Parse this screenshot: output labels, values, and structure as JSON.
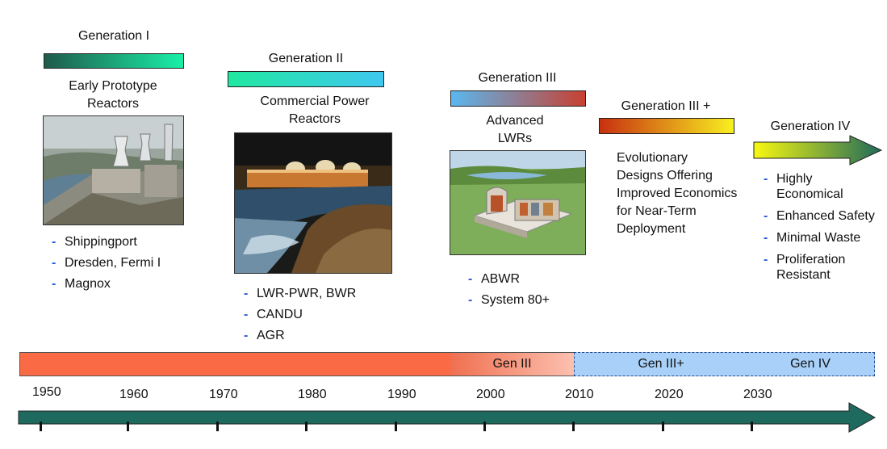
{
  "generations": [
    {
      "title": "Generation I",
      "subtitle": "Early Prototype Reactors",
      "items": [
        "Shippingport",
        "Dresden, Fermi I",
        "Magnox"
      ]
    },
    {
      "title": "Generation II",
      "subtitle": "Commercial Power Reactors",
      "items": [
        "LWR-PWR, BWR",
        "CANDU",
        "AGR"
      ]
    },
    {
      "title": "Generation III",
      "subtitle": "Advanced LWRs",
      "items": [
        "ABWR",
        "System 80+"
      ]
    },
    {
      "title": "Generation III +",
      "description": "Evolutionary Designs Offering Improved Economics for Near-Term Deployment"
    },
    {
      "title": "Generation IV",
      "items": [
        "Highly Economical",
        "Enhanced Safety",
        "Minimal Waste",
        "Proliferation Resistant"
      ]
    }
  ],
  "timeline": {
    "segments": [
      "",
      "Gen III",
      "Gen III+",
      "Gen IV"
    ],
    "years": [
      "1950",
      "1960",
      "1970",
      "1980",
      "1990",
      "2000",
      "2010",
      "2020",
      "2030"
    ]
  },
  "colors": {
    "gen1_bar": [
      "#1f5a4a",
      "#18f0a8"
    ],
    "gen2_bar": [
      "#20e8a0",
      "#40c8f0"
    ],
    "gen3_bar": [
      "#5ab8f0",
      "#c84030"
    ],
    "gen3plus_bar": [
      "#c83010",
      "#f8f020"
    ],
    "gen4_arrow": [
      "#f8f810",
      "#1f6a5a"
    ],
    "timeline_red": "#fa6a44",
    "timeline_gen3": [
      "#f07050",
      "#fcc0b0"
    ],
    "timeline_future": "#a8d0f8",
    "axis_arrow": "#1f6a5e"
  }
}
